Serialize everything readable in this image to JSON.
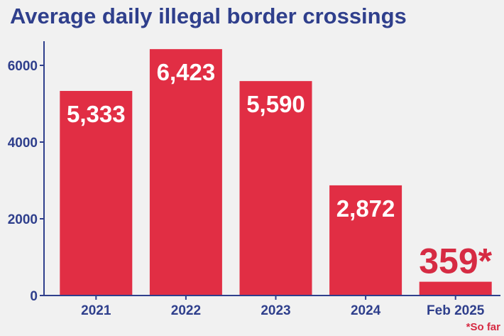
{
  "colors": {
    "bar": "#e12e44",
    "axis": "#2f3f8c",
    "text": "#2f3f8c",
    "accent_text": "#d62b43",
    "background": "#f1f1f1"
  },
  "footnote": "*So far",
  "chart_data": {
    "type": "bar",
    "title": "Average daily illegal border crossings",
    "xlabel": "",
    "ylabel": "",
    "categories": [
      "2021",
      "2022",
      "2023",
      "2024",
      "Feb 2025"
    ],
    "values": [
      5333,
      6423,
      5590,
      2872,
      359
    ],
    "data_labels": [
      "5,333",
      "6,423",
      "5,590",
      "2,872",
      "359*"
    ],
    "yticks": [
      0,
      2000,
      4000,
      6000
    ],
    "ytick_labels": [
      "0",
      "2000",
      "4000",
      "6000"
    ],
    "ylim": [
      0,
      6500
    ],
    "grid": false
  }
}
